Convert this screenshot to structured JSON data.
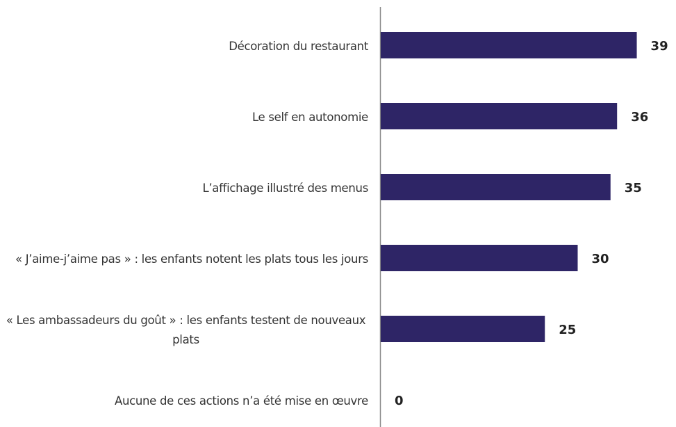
{
  "chart_data": {
    "type": "bar",
    "orientation": "horizontal",
    "categories": [
      "Décoration du restaurant",
      "Le self en autonomie",
      "L’affichage illustré des menus",
      "« J’aime-j’aime pas » : les enfants notent les plats tous les jours",
      "« Les ambassadeurs du goût » : les enfants testent de nouveaux plats",
      "Aucune de ces actions n’a été mise en œuvre"
    ],
    "values": [
      39,
      36,
      35,
      30,
      25,
      0
    ],
    "color": "#2e2566",
    "xlim": [
      0,
      40
    ]
  }
}
